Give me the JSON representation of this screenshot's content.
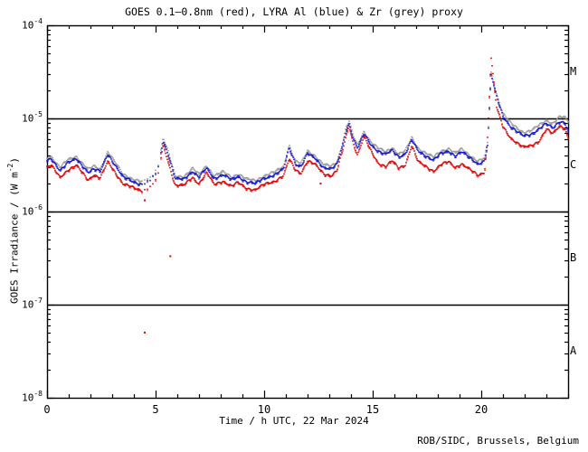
{
  "chart_data": {
    "type": "scatter",
    "title": "GOES 0.1–0.8nm (red), LYRA Al (blue) & Zr (grey) proxy",
    "xlabel": "Time / h UTC, 22 Mar 2024",
    "ylabel": "GOES Irradiance / (W m^-2)",
    "ylabel_render": {
      "prefix": "GOES Irradiance / (W m",
      "sup": "-2",
      "suffix": ")"
    },
    "credit": "ROB/SIDC, Brussels, Belgium",
    "xlim": [
      0,
      24
    ],
    "x_major_ticks": [
      0,
      5,
      10,
      15,
      20
    ],
    "x_minor_step_hours": 1,
    "ylim": [
      1e-08,
      0.0001
    ],
    "y_scale": "log",
    "y_tick_exponents": [
      -4,
      -5,
      -6,
      -7,
      -8
    ],
    "grid": "off",
    "legend": "encoded in title colors",
    "flare_class_boundary_lines": [
      1e-05,
      1e-06,
      1e-07
    ],
    "flare_class_labels": [
      {
        "label": "M",
        "log_center": -4.5
      },
      {
        "label": "C",
        "log_center": -5.5
      },
      {
        "label": "B",
        "log_center": -6.5
      },
      {
        "label": "A",
        "log_center": -7.5
      }
    ],
    "colors": {
      "goes_red": "#dd0000",
      "lyra_al_blue": "#1414cc",
      "lyra_zr_grey": "#9c9c9c",
      "axis": "#000000",
      "background": "#ffffff"
    },
    "hours": [
      0,
      0.2,
      0.6,
      0.95,
      1.35,
      1.9,
      2.15,
      2.45,
      2.8,
      3.1,
      3.5,
      4,
      4.4,
      4.8,
      5.1,
      5.35,
      5.6,
      5.9,
      6.3,
      6.7,
      7,
      7.35,
      7.7,
      8.1,
      8.5,
      8.8,
      9.2,
      9.6,
      10,
      10.5,
      10.9,
      11.15,
      11.45,
      11.7,
      12,
      12.35,
      12.75,
      13.1,
      13.35,
      13.6,
      13.78,
      13.92,
      14.1,
      14.3,
      14.6,
      14.9,
      15.25,
      15.6,
      15.9,
      16.2,
      16.5,
      16.8,
      17.1,
      17.45,
      17.8,
      18.15,
      18.5,
      18.8,
      19.1,
      19.5,
      19.85,
      20.15,
      20.3,
      20.45,
      20.7,
      21,
      21.35,
      21.65,
      21.95,
      22.3,
      22.65,
      23,
      23.3,
      23.6,
      23.85,
      24
    ],
    "series": [
      {
        "name": "LYRA Zr proxy",
        "color_key": "lyra_zr_grey",
        "log10_flux": [
          -5.427,
          -5.408,
          -5.524,
          -5.447,
          -5.408,
          -5.544,
          -5.515,
          -5.544,
          -5.35,
          -5.456,
          -5.602,
          -5.65,
          -5.68,
          -5.631,
          -5.524,
          -5.204,
          -5.369,
          -5.621,
          -5.621,
          -5.534,
          -5.602,
          -5.505,
          -5.612,
          -5.573,
          -5.631,
          -5.592,
          -5.65,
          -5.67,
          -5.612,
          -5.573,
          -5.515,
          -5.282,
          -5.456,
          -5.485,
          -5.35,
          -5.398,
          -5.495,
          -5.515,
          -5.466,
          -5.272,
          -5.087,
          -5.029,
          -5.184,
          -5.291,
          -5.136,
          -5.243,
          -5.32,
          -5.359,
          -5.311,
          -5.379,
          -5.35,
          -5.204,
          -5.32,
          -5.369,
          -5.417,
          -5.35,
          -5.32,
          -5.369,
          -5.33,
          -5.398,
          -5.456,
          -5.427,
          -5.252,
          -4.505,
          -4.728,
          -4.942,
          -5.049,
          -5.107,
          -5.146,
          -5.126,
          -5.078,
          -5.019,
          -5.049,
          -4.981,
          -4.99,
          -5.029
        ]
      },
      {
        "name": "LYRA Al proxy",
        "color_key": "lyra_al_blue",
        "log10_flux": [
          -5.456,
          -5.437,
          -5.553,
          -5.476,
          -5.437,
          -5.573,
          -5.544,
          -5.573,
          -5.379,
          -5.485,
          -5.631,
          -5.68,
          -5.709,
          -5.66,
          -5.553,
          -5.233,
          -5.398,
          -5.65,
          -5.65,
          -5.563,
          -5.631,
          -5.534,
          -5.641,
          -5.602,
          -5.66,
          -5.621,
          -5.68,
          -5.699,
          -5.641,
          -5.602,
          -5.544,
          -5.311,
          -5.485,
          -5.515,
          -5.379,
          -5.427,
          -5.524,
          -5.544,
          -5.495,
          -5.301,
          -5.117,
          -5.058,
          -5.214,
          -5.32,
          -5.165,
          -5.272,
          -5.35,
          -5.388,
          -5.34,
          -5.408,
          -5.379,
          -5.233,
          -5.35,
          -5.398,
          -5.447,
          -5.379,
          -5.35,
          -5.398,
          -5.359,
          -5.427,
          -5.485,
          -5.456,
          -5.282,
          -4.524,
          -4.757,
          -4.971,
          -5.087,
          -5.146,
          -5.184,
          -5.165,
          -5.117,
          -5.058,
          -5.097,
          -5.029,
          -5.049,
          -5.146
        ]
      },
      {
        "name": "GOES 0.1-0.8nm",
        "color_key": "goes_red",
        "log10_flux": [
          -5.524,
          -5.505,
          -5.631,
          -5.553,
          -5.505,
          -5.66,
          -5.602,
          -5.641,
          -5.466,
          -5.563,
          -5.699,
          -5.748,
          -5.777,
          -5.728,
          -5.631,
          -5.282,
          -5.476,
          -5.718,
          -5.718,
          -5.631,
          -5.699,
          -5.583,
          -5.709,
          -5.67,
          -5.728,
          -5.689,
          -5.748,
          -5.767,
          -5.709,
          -5.67,
          -5.612,
          -5.437,
          -5.553,
          -5.583,
          -5.456,
          -5.495,
          -5.592,
          -5.612,
          -5.563,
          -5.359,
          -5.184,
          -5.068,
          -5.262,
          -5.388,
          -5.194,
          -5.34,
          -5.476,
          -5.515,
          -5.456,
          -5.534,
          -5.495,
          -5.291,
          -5.466,
          -5.515,
          -5.563,
          -5.495,
          -5.466,
          -5.524,
          -5.485,
          -5.553,
          -5.612,
          -5.573,
          -5.184,
          -4.33,
          -4.874,
          -5.087,
          -5.204,
          -5.262,
          -5.311,
          -5.291,
          -5.243,
          -5.117,
          -5.165,
          -5.078,
          -5.097,
          -5.204
        ]
      }
    ],
    "goes_outlier_points_hour_log10": [
      [
        4.5,
        -5.88
      ],
      [
        4.5,
        -7.3
      ],
      [
        5.68,
        -6.48
      ],
      [
        12.6,
        -5.7
      ]
    ],
    "sparse_data_hour_ranges": [
      [
        4.35,
        5.28
      ]
    ]
  }
}
